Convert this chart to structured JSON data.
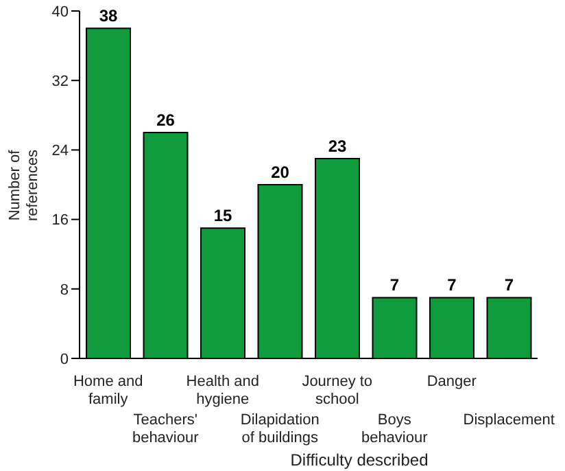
{
  "chart_data": {
    "type": "bar",
    "xlabel": "Difficulty described",
    "ylabel": "Number of references",
    "categories": [
      "Home and family",
      "Teachers' behaviour",
      "Health and hygiene",
      "Dilapidation of buildings",
      "Journey to school",
      "Boys behaviour",
      "Danger",
      "Displacement"
    ],
    "values": [
      38,
      26,
      15,
      20,
      23,
      7,
      7,
      7
    ],
    "color": "#0f9a3c",
    "ylim": [
      0,
      40
    ],
    "yticks": [
      0,
      8,
      16,
      24,
      32,
      40
    ],
    "grid": false,
    "data_labels": true,
    "legend": false
  }
}
